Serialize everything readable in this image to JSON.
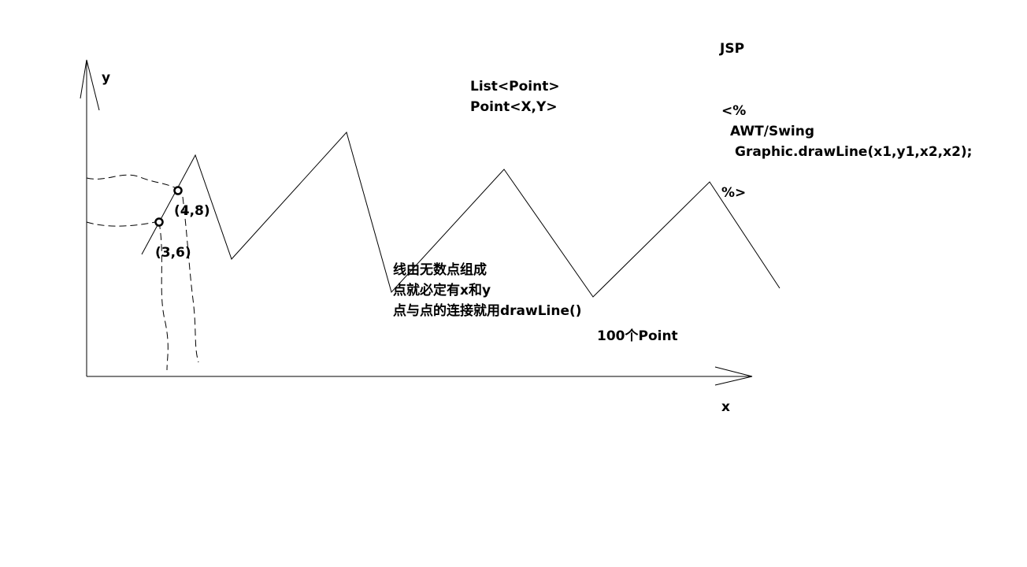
{
  "axes": {
    "y_label": "y",
    "x_label": "x"
  },
  "points": {
    "p1_label": "(3,6)",
    "p2_label": "(4,8)"
  },
  "code_notes": {
    "list_point": "List<Point>",
    "point_xy": "Point<X,Y>"
  },
  "explanation": {
    "line1": "线由无数点组成",
    "line2": "点就必定有x和y",
    "line3": "点与点的连接就用drawLine()",
    "count": "100个Point"
  },
  "jsp_block": {
    "title": "JSP",
    "open_tag": "<%",
    "awt_swing": "AWT/Swing",
    "draw_call": "Graphic.drawLine(x1,y1,x2,x2);",
    "close_tag": "%>"
  },
  "colors": {
    "ink": "#000000",
    "background": "#ffffff"
  }
}
